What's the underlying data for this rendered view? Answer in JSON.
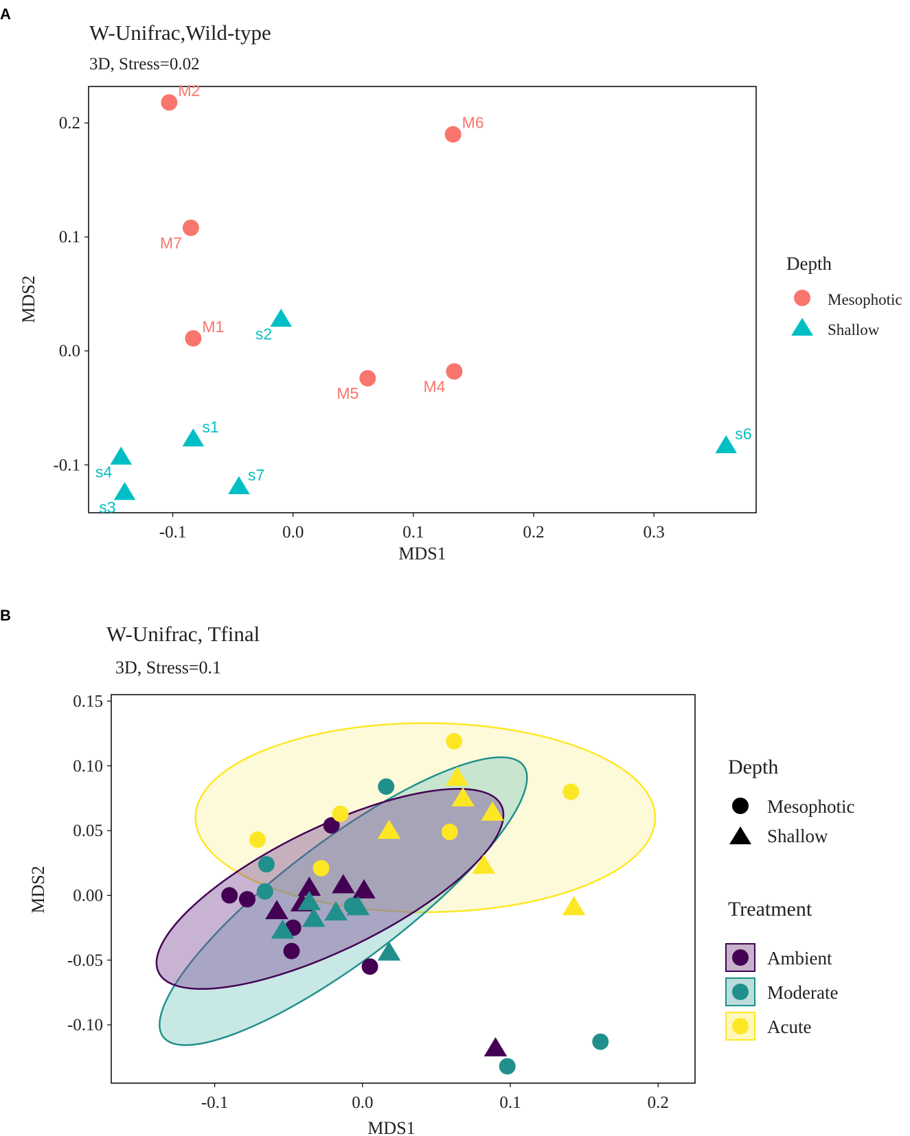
{
  "chart_data": [
    {
      "panel": "A",
      "type": "scatter",
      "title": "W-Unifrac,Wild-type",
      "subtitle": "3D, Stress=0.02",
      "xlabel": "MDS1",
      "ylabel": "MDS2",
      "xlim": [
        -0.17,
        0.385
      ],
      "ylim": [
        -0.142,
        0.232
      ],
      "xticks": [
        -0.1,
        0.0,
        0.1,
        0.2,
        0.3
      ],
      "xtick_labels": [
        "-0.1",
        "0.0",
        "0.1",
        "0.2",
        "0.3"
      ],
      "yticks": [
        -0.1,
        0.0,
        0.1,
        0.2
      ],
      "ytick_labels": [
        "-0.1",
        "0.0",
        "0.1",
        "0.2"
      ],
      "grid": false,
      "legend": {
        "title": "Depth",
        "position": "right",
        "entries": [
          {
            "label": "Mesophotic",
            "shape": "circle",
            "color": "#F8766D"
          },
          {
            "label": "Shallow",
            "shape": "triangle",
            "color": "#00BFC4"
          }
        ]
      },
      "series": [
        {
          "name": "Mesophotic",
          "shape": "circle",
          "color": "#F8766D",
          "points": [
            {
              "label": "M2",
              "x": -0.103,
              "y": 0.218,
              "label_pos": "upper-right"
            },
            {
              "label": "M6",
              "x": 0.133,
              "y": 0.19,
              "label_pos": "upper-right"
            },
            {
              "label": "M7",
              "x": -0.085,
              "y": 0.108,
              "label_pos": "lower-left"
            },
            {
              "label": "M1",
              "x": -0.083,
              "y": 0.011,
              "label_pos": "upper-right"
            },
            {
              "label": "M5",
              "x": 0.062,
              "y": -0.024,
              "label_pos": "lower-left"
            },
            {
              "label": "M4",
              "x": 0.134,
              "y": -0.018,
              "label_pos": "lower-left"
            }
          ]
        },
        {
          "name": "Shallow",
          "shape": "triangle",
          "color": "#00BFC4",
          "points": [
            {
              "label": "s2",
              "x": -0.01,
              "y": 0.028,
              "label_pos": "lower-left"
            },
            {
              "label": "s1",
              "x": -0.083,
              "y": -0.077,
              "label_pos": "upper-right"
            },
            {
              "label": "s4",
              "x": -0.143,
              "y": -0.093,
              "label_pos": "lower-left"
            },
            {
              "label": "s3",
              "x": -0.14,
              "y": -0.124,
              "label_pos": "lower-left"
            },
            {
              "label": "s7",
              "x": -0.045,
              "y": -0.119,
              "label_pos": "upper-right"
            },
            {
              "label": "s6",
              "x": 0.36,
              "y": -0.083,
              "label_pos": "upper-right"
            }
          ]
        }
      ]
    },
    {
      "panel": "B",
      "type": "scatter",
      "title": "W-Unifrac, Tfinal",
      "subtitle": "3D, Stress=0.1",
      "xlabel": "MDS1",
      "ylabel": "MDS2",
      "xlim": [
        -0.17,
        0.225
      ],
      "ylim": [
        -0.145,
        0.155
      ],
      "xticks": [
        -0.1,
        0.0,
        0.1,
        0.2
      ],
      "xtick_labels": [
        "-0.1",
        "0.0",
        "0.1",
        "0.2"
      ],
      "yticks": [
        -0.1,
        -0.05,
        0.0,
        0.05,
        0.1,
        0.15
      ],
      "ytick_labels": [
        "-0.10",
        "-0.05",
        "0.00",
        "0.05",
        "0.10",
        "0.15"
      ],
      "grid": false,
      "legend_depth": {
        "title": "Depth",
        "entries": [
          {
            "label": "Mesophotic",
            "shape": "circle"
          },
          {
            "label": "Shallow",
            "shape": "triangle"
          }
        ]
      },
      "legend_treatment": {
        "title": "Treatment",
        "entries": [
          {
            "label": "Ambient",
            "color": "#440154"
          },
          {
            "label": "Moderate",
            "color": "#21908C"
          },
          {
            "label": "Acute",
            "color": "#FDE725"
          }
        ]
      },
      "ellipses": [
        {
          "group": "Acute",
          "color": "#FDE725",
          "fill": "#FBF3A8",
          "cx": 0.0425,
          "cy": 0.06,
          "rx": 0.1555,
          "ry": 0.073,
          "angle_deg": 0
        },
        {
          "group": "Moderate",
          "color": "#21908C",
          "fill": "#7BC7C2",
          "cx": -0.013,
          "cy": -0.0045,
          "rx": 0.1526,
          "ry": 0.0465,
          "angle_deg": -37
        },
        {
          "group": "Ambient",
          "color": "#440154",
          "fill": "#7C4B96",
          "cx": -0.022,
          "cy": 0.005,
          "rx": 0.129,
          "ry": 0.0473,
          "angle_deg": -26
        }
      ],
      "series": [
        {
          "name": "Ambient",
          "color": "#440154",
          "points": [
            {
              "x": -0.021,
              "y": 0.054,
              "shape": "circle"
            },
            {
              "x": -0.09,
              "y": 0.0,
              "shape": "circle"
            },
            {
              "x": -0.078,
              "y": -0.003,
              "shape": "circle"
            },
            {
              "x": -0.047,
              "y": -0.025,
              "shape": "circle"
            },
            {
              "x": -0.048,
              "y": -0.043,
              "shape": "circle"
            },
            {
              "x": 0.005,
              "y": -0.055,
              "shape": "circle"
            },
            {
              "x": -0.036,
              "y": 0.006,
              "shape": "triangle"
            },
            {
              "x": -0.013,
              "y": 0.008,
              "shape": "triangle"
            },
            {
              "x": 0.001,
              "y": 0.004,
              "shape": "triangle"
            },
            {
              "x": -0.058,
              "y": -0.012,
              "shape": "triangle"
            },
            {
              "x": -0.041,
              "y": -0.006,
              "shape": "triangle"
            },
            {
              "x": 0.09,
              "y": -0.118,
              "shape": "triangle"
            }
          ]
        },
        {
          "name": "Moderate",
          "color": "#21908C",
          "points": [
            {
              "x": 0.016,
              "y": 0.084,
              "shape": "circle"
            },
            {
              "x": -0.065,
              "y": 0.024,
              "shape": "circle"
            },
            {
              "x": -0.066,
              "y": 0.003,
              "shape": "circle"
            },
            {
              "x": -0.007,
              "y": -0.008,
              "shape": "circle"
            },
            {
              "x": 0.098,
              "y": -0.132,
              "shape": "circle"
            },
            {
              "x": 0.161,
              "y": -0.113,
              "shape": "circle"
            },
            {
              "x": -0.036,
              "y": -0.005,
              "shape": "triangle"
            },
            {
              "x": -0.018,
              "y": -0.013,
              "shape": "triangle"
            },
            {
              "x": -0.003,
              "y": -0.009,
              "shape": "triangle"
            },
            {
              "x": -0.033,
              "y": -0.018,
              "shape": "triangle"
            },
            {
              "x": -0.054,
              "y": -0.027,
              "shape": "triangle"
            },
            {
              "x": 0.018,
              "y": -0.044,
              "shape": "triangle"
            }
          ]
        },
        {
          "name": "Acute",
          "color": "#FDE725",
          "points": [
            {
              "x": 0.062,
              "y": 0.119,
              "shape": "circle"
            },
            {
              "x": 0.141,
              "y": 0.08,
              "shape": "circle"
            },
            {
              "x": -0.015,
              "y": 0.063,
              "shape": "circle"
            },
            {
              "x": -0.071,
              "y": 0.043,
              "shape": "circle"
            },
            {
              "x": 0.059,
              "y": 0.049,
              "shape": "circle"
            },
            {
              "x": -0.028,
              "y": 0.021,
              "shape": "circle"
            },
            {
              "x": 0.064,
              "y": 0.091,
              "shape": "triangle"
            },
            {
              "x": 0.068,
              "y": 0.075,
              "shape": "triangle"
            },
            {
              "x": 0.088,
              "y": 0.064,
              "shape": "triangle"
            },
            {
              "x": 0.018,
              "y": 0.05,
              "shape": "triangle"
            },
            {
              "x": 0.082,
              "y": 0.023,
              "shape": "triangle"
            },
            {
              "x": 0.143,
              "y": -0.009,
              "shape": "triangle"
            }
          ]
        }
      ]
    }
  ]
}
